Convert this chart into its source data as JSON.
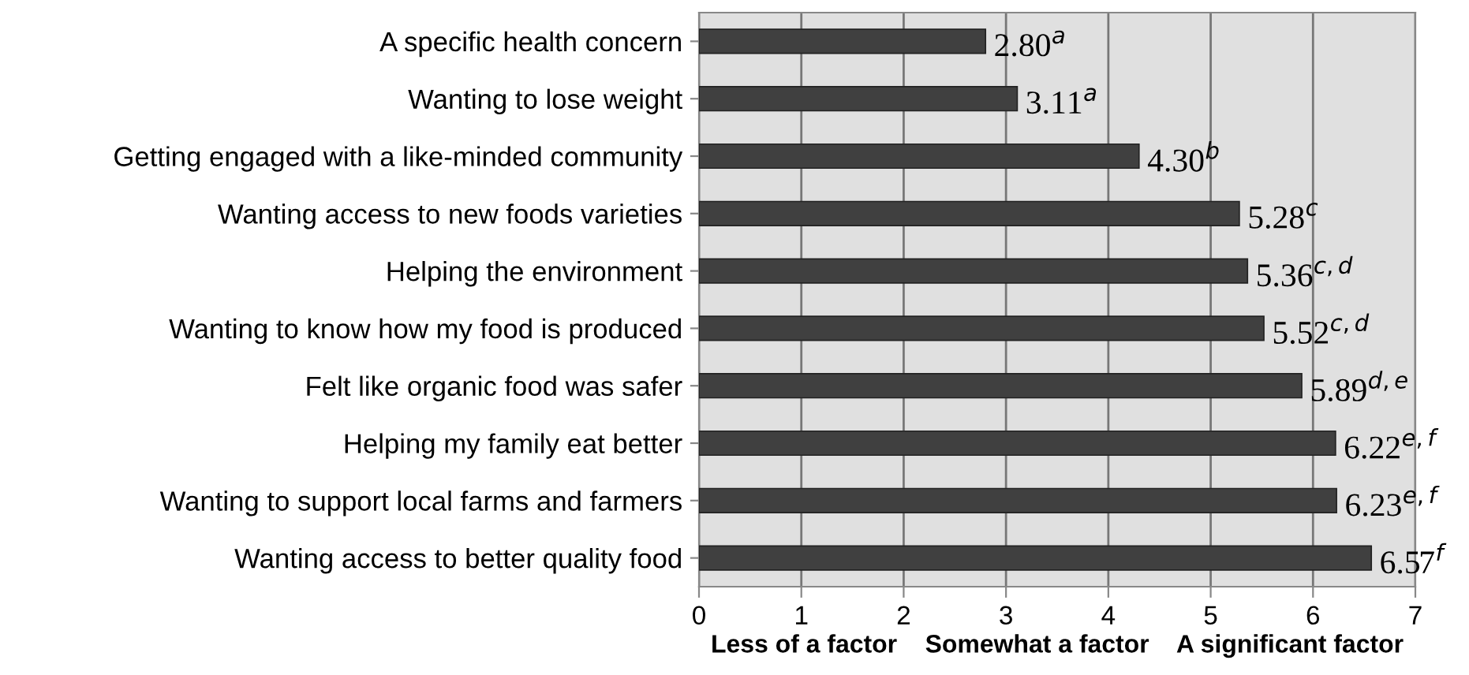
{
  "chart_data": {
    "type": "bar",
    "orientation": "horizontal",
    "categories": [
      "A specific health concern",
      "Wanting to lose weight",
      "Getting engaged with a like-minded community",
      "Wanting access to new foods varieties",
      "Helping the environment",
      "Wanting to know how my food is produced",
      "Felt like organic food was safer",
      "Helping my family eat better",
      "Wanting to support local farms and farmers",
      "Wanting access to better quality food"
    ],
    "values": [
      2.8,
      3.11,
      4.3,
      5.28,
      5.36,
      5.52,
      5.89,
      6.22,
      6.23,
      6.57
    ],
    "value_labels": [
      "2.80$^{a}$",
      "3.11$^{a}$",
      "4.30$^{b}$",
      "5.28$^{c}$",
      "5.36$^{c,d}$",
      "5.52$^{c,d}$",
      "5.89$^{d,e}$",
      "6.22$^{e,f}$",
      "6.23$^{e,f}$",
      "6.57$^{f}$"
    ],
    "color": "#404040",
    "xlim": [
      0,
      7
    ],
    "xticks": [
      0,
      1,
      2,
      3,
      4,
      5,
      6,
      7
    ],
    "xlabel": "Less of a factor    Somewhat a factor    A significant factor",
    "grid": "x"
  }
}
